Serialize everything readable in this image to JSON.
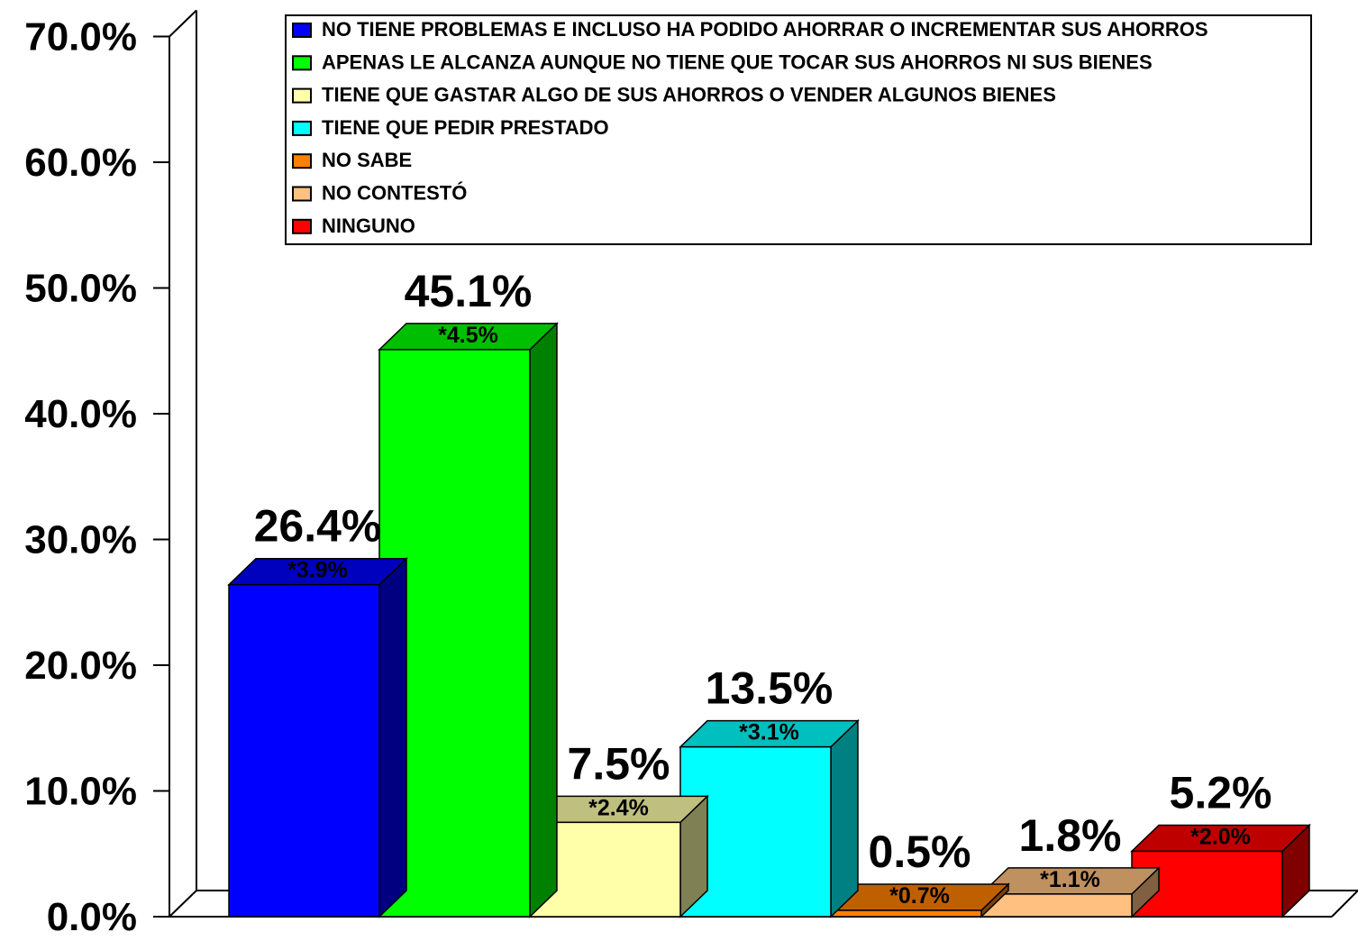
{
  "chart_data": {
    "type": "bar",
    "ylim": [
      0,
      70
    ],
    "yticks": [
      "0.0%",
      "10.0%",
      "20.0%",
      "30.0%",
      "40.0%",
      "50.0%",
      "60.0%",
      "70.0%"
    ],
    "grid": false,
    "legend_position": "top-right",
    "series": [
      {
        "name": "NO TIENE PROBLEMAS E INCLUSO HA PODIDO AHORRAR O INCREMENTAR SUS AHORROS",
        "value": 26.4,
        "label": "26.4%",
        "error_label": "*3.9%",
        "color": "#0000ff"
      },
      {
        "name": "APENAS LE ALCANZA AUNQUE NO TIENE QUE TOCAR SUS AHORROS NI SUS BIENES",
        "value": 45.1,
        "label": "45.1%",
        "error_label": "*4.5%",
        "color": "#00ff00"
      },
      {
        "name": "TIENE QUE GASTAR ALGO DE SUS AHORROS O VENDER ALGUNOS BIENES",
        "value": 7.5,
        "label": "7.5%",
        "error_label": "*2.4%",
        "color": "#ffffaa"
      },
      {
        "name": "TIENE QUE PEDIR PRESTADO",
        "value": 13.5,
        "label": "13.5%",
        "error_label": "*3.1%",
        "color": "#00ffff"
      },
      {
        "name": "NO SABE",
        "value": 0.5,
        "label": "0.5%",
        "error_label": "*0.7%",
        "color": "#ff8000"
      },
      {
        "name": "NO CONTESTÓ",
        "value": 1.8,
        "label": "1.8%",
        "error_label": "*1.1%",
        "color": "#ffc080"
      },
      {
        "name": "NINGUNO",
        "value": 5.2,
        "label": "5.2%",
        "error_label": "*2.0%",
        "color": "#ff0000"
      }
    ]
  }
}
